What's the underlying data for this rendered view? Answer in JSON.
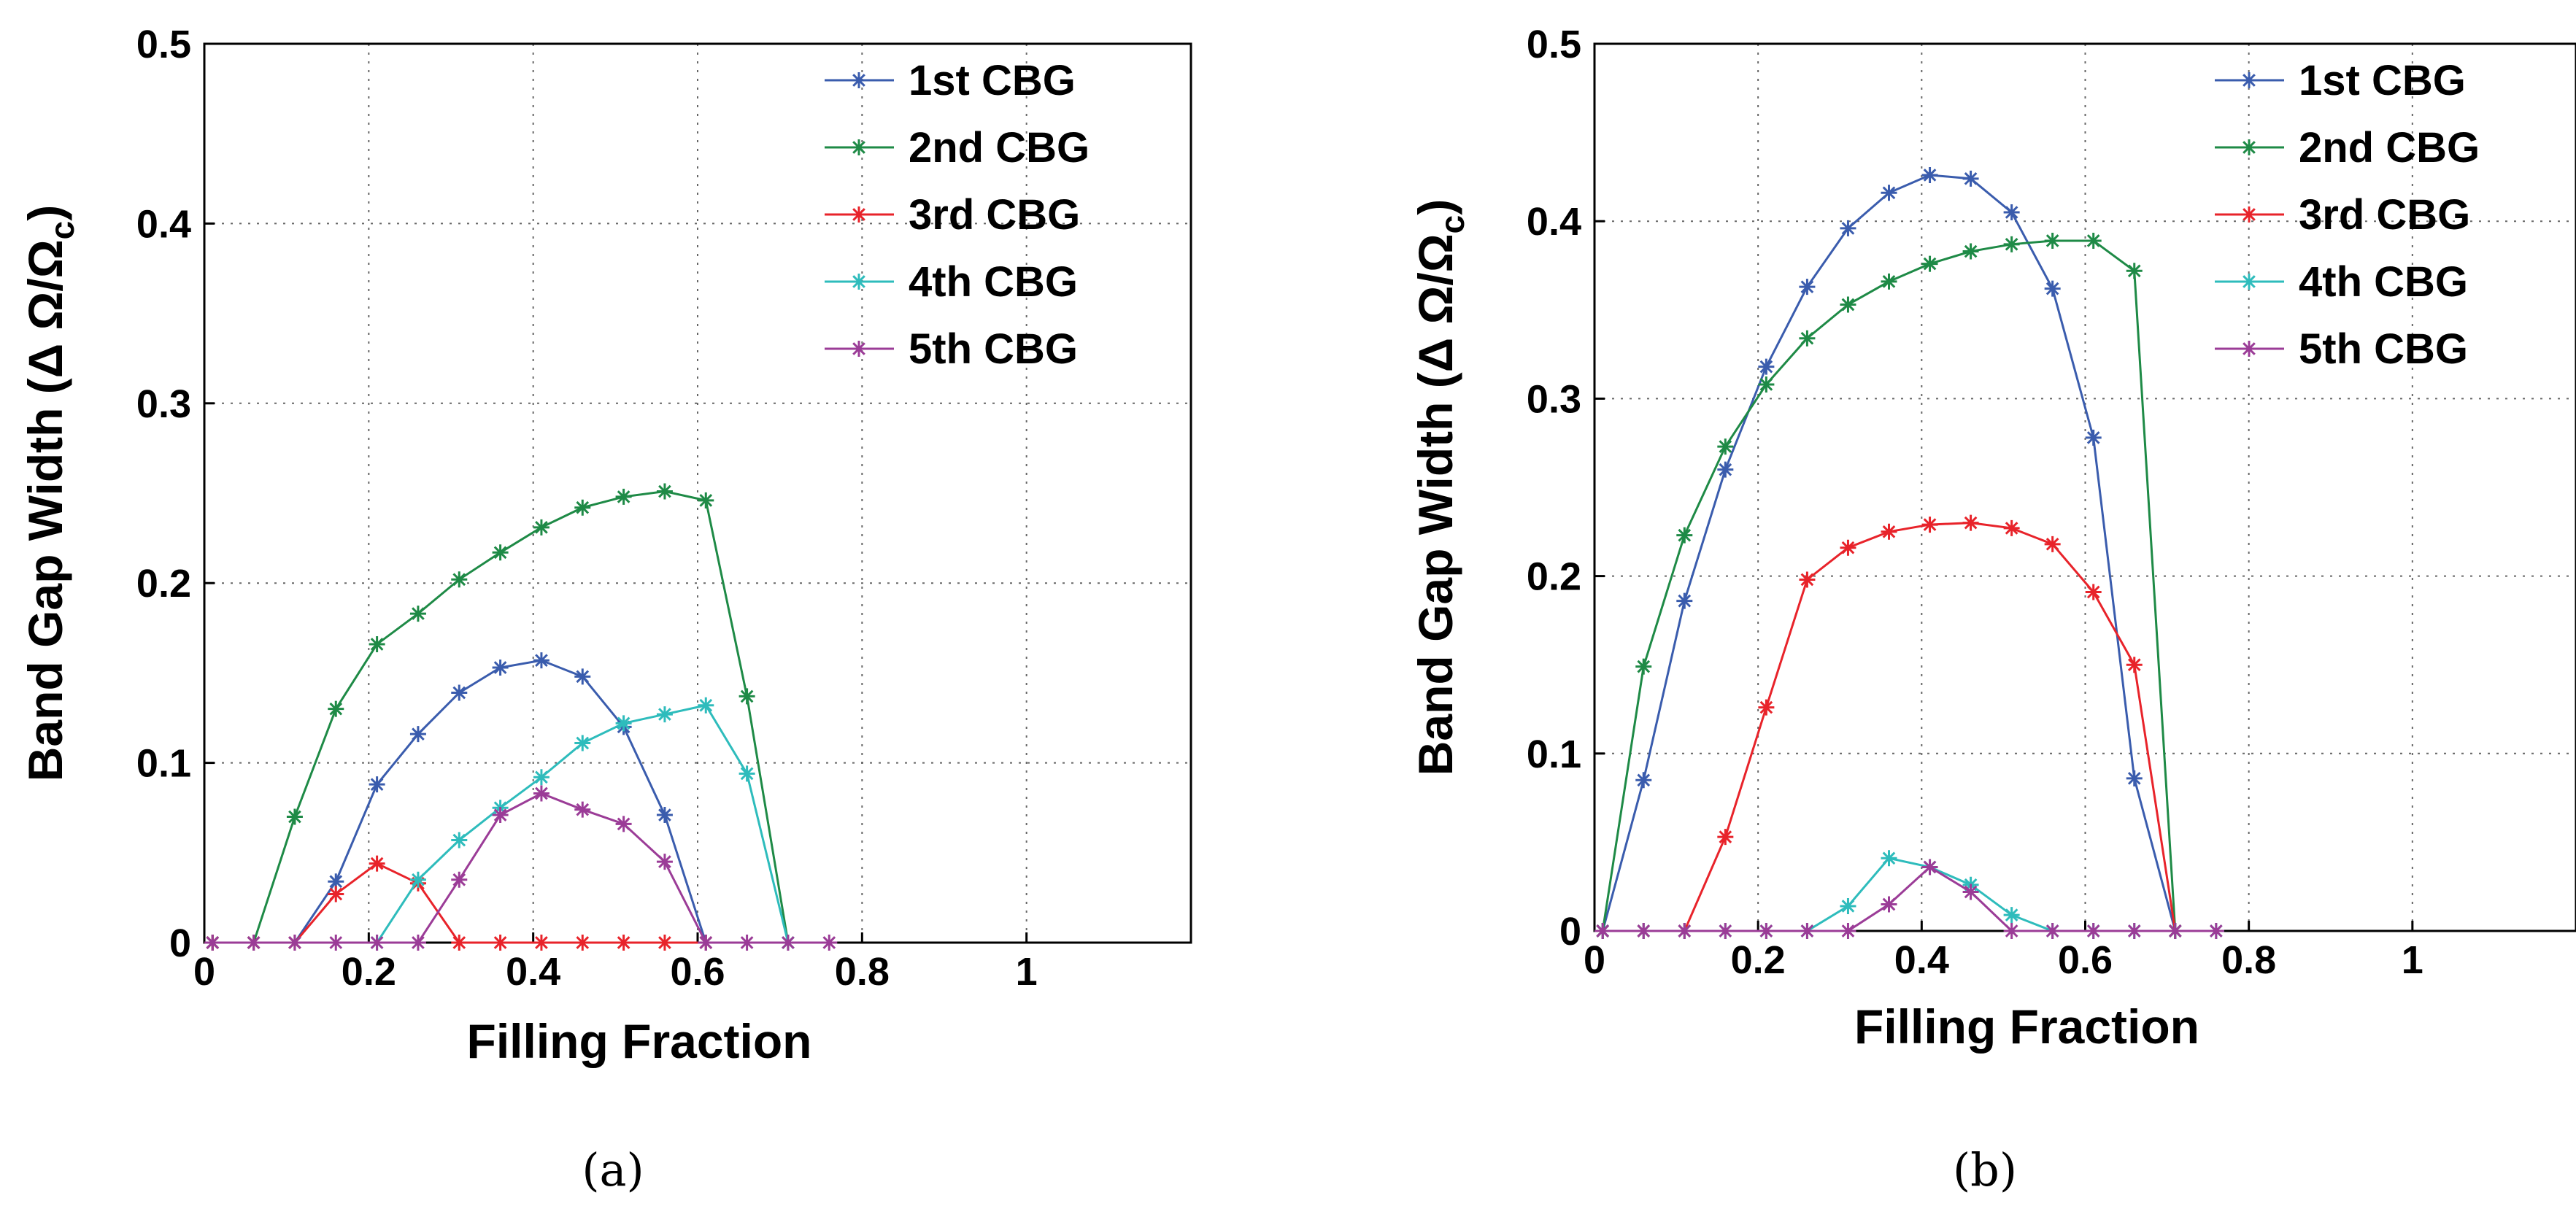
{
  "chart_data": [
    {
      "type": "line",
      "panel": "(a)",
      "title": "",
      "xlabel": "Filling Fraction",
      "ylabel": "Band Gap Width (Δ Ω/Ω",
      "ylabel_sub": "c",
      "ylabel_end": ")",
      "xlim": [
        0,
        1.2
      ],
      "ylim": [
        0,
        0.5
      ],
      "xticks": [
        0,
        0.2,
        0.4,
        0.6,
        0.8,
        1
      ],
      "xtick_labels": [
        "0",
        "0.2",
        "0.4",
        "0.6",
        "0.8",
        "1"
      ],
      "yticks": [
        0,
        0.1,
        0.2,
        0.3,
        0.4,
        0.5
      ],
      "ytick_labels": [
        "0",
        "0.1",
        "0.2",
        "0.3",
        "0.4",
        "0.5"
      ],
      "grid": true,
      "legend_position": "top-right",
      "series": [
        {
          "name": "1st CBG",
          "color": "#3a5cad",
          "x": [
            0.01,
            0.06,
            0.11,
            0.16,
            0.21,
            0.26,
            0.31,
            0.36,
            0.41,
            0.46,
            0.51,
            0.56,
            0.61
          ],
          "y": [
            0,
            0,
            0,
            0.034,
            0.088,
            0.116,
            0.139,
            0.153,
            0.157,
            0.148,
            0.12,
            0.071,
            0
          ]
        },
        {
          "name": "2nd CBG",
          "color": "#1e8a46",
          "x": [
            0.01,
            0.06,
            0.11,
            0.16,
            0.21,
            0.26,
            0.31,
            0.36,
            0.41,
            0.46,
            0.51,
            0.56,
            0.61,
            0.66,
            0.71
          ],
          "y": [
            0,
            0,
            0.07,
            0.13,
            0.166,
            0.183,
            0.202,
            0.217,
            0.231,
            0.242,
            0.248,
            0.251,
            0.246,
            0.137,
            0
          ]
        },
        {
          "name": "3rd CBG",
          "color": "#e8232a",
          "x": [
            0.01,
            0.06,
            0.11,
            0.16,
            0.21,
            0.26,
            0.31,
            0.36,
            0.41,
            0.46,
            0.51,
            0.56,
            0.61
          ],
          "y": [
            0,
            0,
            0,
            0.027,
            0.044,
            0.033,
            0,
            0,
            0,
            0,
            0,
            0,
            0
          ]
        },
        {
          "name": "4th CBG",
          "color": "#2ebcbc",
          "x": [
            0.21,
            0.26,
            0.31,
            0.36,
            0.41,
            0.46,
            0.51,
            0.56,
            0.61,
            0.66,
            0.71
          ],
          "y": [
            0,
            0.035,
            0.057,
            0.075,
            0.092,
            0.111,
            0.122,
            0.127,
            0.132,
            0.094,
            0
          ]
        },
        {
          "name": "5th CBG",
          "color": "#9b3c97",
          "x": [
            0.01,
            0.06,
            0.11,
            0.16,
            0.21,
            0.26,
            0.31,
            0.36,
            0.41,
            0.46,
            0.51,
            0.56,
            0.61,
            0.66,
            0.71,
            0.76
          ],
          "y": [
            0,
            0,
            0,
            0,
            0,
            0,
            0.035,
            0.071,
            0.083,
            0.074,
            0.066,
            0.045,
            0,
            0,
            0,
            0
          ]
        }
      ]
    },
    {
      "type": "line",
      "panel": "(b)",
      "title": "",
      "xlabel": "Filling Fraction",
      "ylabel": "Band Gap Width (Δ Ω/Ω",
      "ylabel_sub": "c",
      "ylabel_end": ")",
      "xlim": [
        0,
        1.2
      ],
      "ylim": [
        0,
        0.5
      ],
      "xticks": [
        0,
        0.2,
        0.4,
        0.6,
        0.8,
        1
      ],
      "xtick_labels": [
        "0",
        "0.2",
        "0.4",
        "0.6",
        "0.8",
        "1"
      ],
      "yticks": [
        0,
        0.1,
        0.2,
        0.3,
        0.4,
        0.5
      ],
      "ytick_labels": [
        "0",
        "0.1",
        "0.2",
        "0.3",
        "0.4",
        "0.5"
      ],
      "grid": true,
      "legend_position": "top-right",
      "series": [
        {
          "name": "1st CBG",
          "color": "#3a5cad",
          "x": [
            0.01,
            0.06,
            0.11,
            0.16,
            0.21,
            0.26,
            0.31,
            0.36,
            0.41,
            0.46,
            0.51,
            0.56,
            0.61,
            0.66,
            0.71
          ],
          "y": [
            0,
            0.085,
            0.186,
            0.26,
            0.318,
            0.363,
            0.396,
            0.416,
            0.426,
            0.424,
            0.405,
            0.362,
            0.278,
            0.086,
            0
          ]
        },
        {
          "name": "2nd CBG",
          "color": "#1e8a46",
          "x": [
            0.01,
            0.06,
            0.11,
            0.16,
            0.21,
            0.26,
            0.31,
            0.36,
            0.41,
            0.46,
            0.51,
            0.56,
            0.61,
            0.66,
            0.71
          ],
          "y": [
            0,
            0.149,
            0.223,
            0.273,
            0.308,
            0.334,
            0.353,
            0.366,
            0.376,
            0.383,
            0.387,
            0.389,
            0.389,
            0.372,
            0
          ]
        },
        {
          "name": "3rd CBG",
          "color": "#e8232a",
          "x": [
            0.01,
            0.06,
            0.11,
            0.16,
            0.21,
            0.26,
            0.31,
            0.36,
            0.41,
            0.46,
            0.51,
            0.56,
            0.61,
            0.66,
            0.71
          ],
          "y": [
            0,
            0,
            0,
            0.053,
            0.126,
            0.198,
            0.216,
            0.225,
            0.229,
            0.23,
            0.227,
            0.218,
            0.191,
            0.15,
            0
          ]
        },
        {
          "name": "4th CBG",
          "color": "#2ebcbc",
          "x": [
            0.01,
            0.06,
            0.11,
            0.16,
            0.21,
            0.26,
            0.31,
            0.36,
            0.41,
            0.46,
            0.51,
            0.56,
            0.61,
            0.66,
            0.71,
            0.76
          ],
          "y": [
            0,
            0,
            0,
            0,
            0,
            0,
            0.014,
            0.041,
            0.036,
            0.026,
            0.009,
            0,
            0,
            0,
            0,
            0
          ]
        },
        {
          "name": "5th CBG",
          "color": "#9b3c97",
          "x": [
            0.01,
            0.06,
            0.11,
            0.16,
            0.21,
            0.26,
            0.31,
            0.36,
            0.41,
            0.46,
            0.51,
            0.56,
            0.61,
            0.66,
            0.71,
            0.76
          ],
          "y": [
            0,
            0,
            0,
            0,
            0,
            0,
            0,
            0.015,
            0.036,
            0.022,
            0,
            0,
            0,
            0,
            0,
            0
          ]
        }
      ]
    }
  ]
}
